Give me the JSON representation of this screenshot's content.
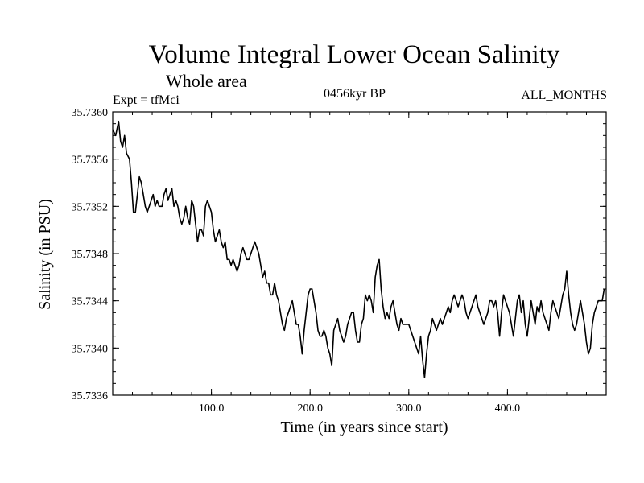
{
  "chart_data": {
    "type": "line",
    "title": "Volume Integral Lower Ocean Salinity",
    "subtitle": "Whole area",
    "experiment": "Expt = tfMci",
    "period": "0456kyr BP",
    "months": "ALL_MONTHS",
    "xlabel": "Time (in years since start)",
    "ylabel": "Salinity (in PSU)",
    "xlim": [
      0,
      500
    ],
    "ylim": [
      35.7336,
      35.736
    ],
    "x_ticks": [
      100,
      200,
      300,
      400
    ],
    "x_tick_labels": [
      "100.0",
      "200.0",
      "300.0",
      "400.0"
    ],
    "y_ticks": [
      35.7336,
      35.734,
      35.7344,
      35.7348,
      35.7352,
      35.7356,
      35.736
    ],
    "y_tick_labels": [
      "35.7336",
      "35.7340",
      "35.7344",
      "35.7348",
      "35.7352",
      "35.7356",
      "35.7360"
    ],
    "grid": false,
    "series": [
      {
        "color": "#000000",
        "x": [
          0,
          3,
          6,
          8,
          10,
          12,
          14,
          17,
          19,
          21,
          23,
          25,
          27,
          29,
          31,
          33,
          35,
          37,
          39,
          41,
          43,
          45,
          47,
          50,
          52,
          54,
          56,
          58,
          60,
          62,
          64,
          66,
          68,
          70,
          72,
          74,
          76,
          78,
          80,
          82,
          84,
          86,
          88,
          90,
          92,
          94,
          96,
          98,
          100,
          102,
          104,
          106,
          108,
          110,
          112,
          114,
          116,
          118,
          120,
          122,
          124,
          126,
          128,
          130,
          132,
          134,
          136,
          138,
          140,
          142,
          144,
          146,
          148,
          150,
          152,
          154,
          156,
          158,
          160,
          162,
          164,
          166,
          168,
          170,
          172,
          174,
          176,
          178,
          180,
          182,
          184,
          186,
          188,
          190,
          192,
          194,
          196,
          198,
          200,
          202,
          204,
          206,
          208,
          210,
          212,
          214,
          216,
          218,
          220,
          222,
          224,
          226,
          228,
          230,
          232,
          234,
          236,
          238,
          240,
          242,
          244,
          246,
          248,
          250,
          252,
          254,
          256,
          258,
          260,
          262,
          264,
          266,
          268,
          270,
          272,
          274,
          276,
          278,
          280,
          282,
          284,
          286,
          288,
          290,
          292,
          294,
          296,
          298,
          300,
          302,
          304,
          306,
          308,
          310,
          312,
          314,
          316,
          318,
          320,
          322,
          324,
          326,
          328,
          330,
          332,
          334,
          336,
          338,
          340,
          342,
          344,
          346,
          348,
          350,
          352,
          354,
          356,
          358,
          360,
          362,
          364,
          366,
          368,
          370,
          372,
          374,
          376,
          378,
          380,
          382,
          384,
          386,
          388,
          390,
          392,
          394,
          396,
          398,
          400,
          402,
          404,
          406,
          408,
          410,
          412,
          414,
          416,
          418,
          420,
          422,
          424,
          426,
          428,
          430,
          432,
          434,
          436,
          438,
          440,
          442,
          444,
          446,
          448,
          450,
          452,
          454,
          456,
          458,
          460,
          462,
          464,
          466,
          468,
          470,
          472,
          474,
          476,
          478,
          480,
          482,
          484,
          486,
          488,
          490,
          492,
          494,
          496,
          498
        ],
        "y": [
          35.73585,
          35.7358,
          35.73592,
          35.73575,
          35.7357,
          35.7358,
          35.73565,
          35.7356,
          35.7354,
          35.73515,
          35.73515,
          35.7353,
          35.73545,
          35.7354,
          35.7353,
          35.7352,
          35.73515,
          35.7352,
          35.73525,
          35.7353,
          35.7352,
          35.73525,
          35.7352,
          35.7352,
          35.7353,
          35.73535,
          35.73525,
          35.7353,
          35.73535,
          35.7352,
          35.73525,
          35.7352,
          35.7351,
          35.73505,
          35.7351,
          35.7352,
          35.7351,
          35.73505,
          35.73525,
          35.7352,
          35.73505,
          35.7349,
          35.735,
          35.735,
          35.73495,
          35.7352,
          35.73525,
          35.7352,
          35.73515,
          35.735,
          35.7349,
          35.73495,
          35.735,
          35.7349,
          35.73485,
          35.7349,
          35.73475,
          35.73475,
          35.7347,
          35.73475,
          35.7347,
          35.73465,
          35.7347,
          35.7348,
          35.73485,
          35.7348,
          35.73475,
          35.73475,
          35.7348,
          35.73485,
          35.7349,
          35.73485,
          35.7348,
          35.7347,
          35.7346,
          35.73465,
          35.73455,
          35.73455,
          35.73445,
          35.73445,
          35.73455,
          35.73445,
          35.7344,
          35.7343,
          35.7342,
          35.73415,
          35.73425,
          35.7343,
          35.73435,
          35.7344,
          35.7343,
          35.7342,
          35.7342,
          35.7341,
          35.73395,
          35.73415,
          35.7343,
          35.73445,
          35.7345,
          35.7345,
          35.7344,
          35.7343,
          35.73415,
          35.7341,
          35.7341,
          35.73415,
          35.7341,
          35.734,
          35.73395,
          35.73385,
          35.73415,
          35.7342,
          35.73425,
          35.73415,
          35.7341,
          35.73405,
          35.7341,
          35.7342,
          35.73425,
          35.7343,
          35.7343,
          35.73415,
          35.73405,
          35.73405,
          35.7342,
          35.73425,
          35.73445,
          35.7344,
          35.73445,
          35.7344,
          35.7343,
          35.7346,
          35.7347,
          35.73475,
          35.7345,
          35.73435,
          35.73425,
          35.7343,
          35.73425,
          35.73435,
          35.7344,
          35.7343,
          35.7342,
          35.73415,
          35.73425,
          35.7342,
          35.7342,
          35.7342,
          35.7342,
          35.73415,
          35.7341,
          35.73405,
          35.734,
          35.73395,
          35.7341,
          35.7339,
          35.73375,
          35.73395,
          35.7341,
          35.73415,
          35.73425,
          35.7342,
          35.73415,
          35.7342,
          35.73425,
          35.7342,
          35.73425,
          35.7343,
          35.73435,
          35.7343,
          35.7344,
          35.73445,
          35.7344,
          35.73435,
          35.7344,
          35.73445,
          35.7344,
          35.7343,
          35.73425,
          35.7343,
          35.73435,
          35.7344,
          35.73445,
          35.73435,
          35.7343,
          35.73425,
          35.7342,
          35.73425,
          35.7343,
          35.7344,
          35.7344,
          35.73435,
          35.7344,
          35.7343,
          35.7341,
          35.7343,
          35.73445,
          35.7344,
          35.73435,
          35.7343,
          35.7342,
          35.7341,
          35.73425,
          35.7344,
          35.73445,
          35.7343,
          35.7344,
          35.7342,
          35.7341,
          35.73425,
          35.7344,
          35.7343,
          35.7342,
          35.73435,
          35.7343,
          35.7344,
          35.7343,
          35.73425,
          35.7342,
          35.73415,
          35.7343,
          35.7344,
          35.73435,
          35.7343,
          35.73425,
          35.73435,
          35.73445,
          35.7345,
          35.73465,
          35.73445,
          35.7343,
          35.7342,
          35.73415,
          35.7342,
          35.7343,
          35.7344,
          35.7343,
          35.7342,
          35.73405,
          35.73395,
          35.734,
          35.7342,
          35.7343,
          35.73435,
          35.7344,
          35.7344,
          35.7344,
          35.7345
        ]
      }
    ]
  }
}
